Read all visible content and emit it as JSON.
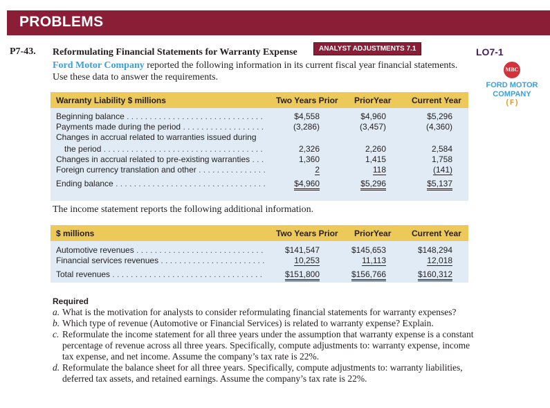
{
  "banner": "PROBLEMS",
  "problem": {
    "number": "P7-43.",
    "title": "Reformulating Financial Statements for Warranty Expense",
    "tag": "ANALYST ADJUSTMENTS 7.1",
    "company": "Ford Motor Company",
    "intro": " reported the following information in its current fiscal year financial statements. Use these data to answer the requirements."
  },
  "side": {
    "lo": "LO7-1",
    "logo": "MBC",
    "company": "FORD MOTOR COMPANY",
    "code": "(F)"
  },
  "table1": {
    "headers": [
      "Warranty Liability $ millions",
      "Two Years Prior",
      "PriorYear",
      "Current Year"
    ],
    "rows": [
      {
        "label": "Beginning balance",
        "v": [
          "$4,558",
          "$4,960",
          "$5,296"
        ]
      },
      {
        "label": "Payments made during the period",
        "v": [
          "(3,286)",
          "(3,457)",
          "(4,360)"
        ]
      },
      {
        "label": "Changes in accrual related to warranties issued during",
        "v": [
          "",
          "",
          ""
        ]
      },
      {
        "label": "the period",
        "v": [
          "2,326",
          "2,260",
          "2,584"
        ]
      },
      {
        "label": "Changes in accrual related to pre-existing warranties",
        "v": [
          "1,360",
          "1,415",
          "1,758"
        ]
      },
      {
        "label": "Foreign currency translation and other",
        "v": [
          "2",
          "118",
          "(141)"
        ]
      },
      {
        "label": "Ending balance",
        "v": [
          "$4,960",
          "$5,296",
          "$5,137"
        ]
      }
    ]
  },
  "between": "The income statement reports the following additional information.",
  "table2": {
    "headers": [
      "$ millions",
      "Two Years Prior",
      "PriorYear",
      "Current Year"
    ],
    "rows": [
      {
        "label": "Automotive revenues",
        "v": [
          "$141,547",
          "$145,653",
          "$148,294"
        ]
      },
      {
        "label": "Financial services revenues",
        "v": [
          "10,253",
          "11,113",
          "12,018"
        ]
      },
      {
        "label": "Total revenues",
        "v": [
          "$151,800",
          "$156,766",
          "$160,312"
        ]
      }
    ]
  },
  "required": {
    "title": "Required",
    "items": [
      {
        "letter": "a.",
        "text": "What is the motivation for analysts to consider reformulating financial statements for warranty expenses?"
      },
      {
        "letter": "b.",
        "text": "Which type of revenue (Automotive or Financial Services) is related to warranty expense? Explain."
      },
      {
        "letter": "c.",
        "text": "Reformulate the income statement for all three years under the assumption that warranty expense is a constant percentage of revenue across all three years. Specifically, compute adjustments to: warranty expense, income tax expense, and net income. Assume the company’s tax rate is 22%."
      },
      {
        "letter": "d.",
        "text": "Reformulate the balance sheet for all three years. Specifically, compute adjustments to: warranty liabilities, deferred tax assets, and retained earnings. Assume the company’s tax rate is 22%."
      }
    ]
  }
}
